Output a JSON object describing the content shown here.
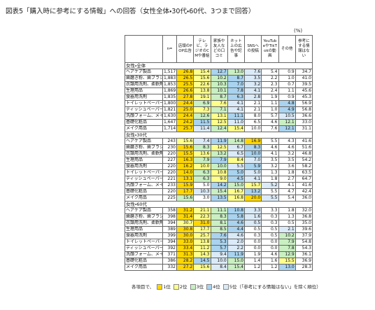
{
  "title": "図表5「購入時に参考にする情報」への回答（女性全体・30代・60代、3つまで回答）",
  "unit": "(%)",
  "header": {
    "n": "n=",
    "columns": [
      "店頭のPOP広告",
      "テレビ、ラジオのCMや番組",
      "家族や友人などの口コミ",
      "ネット上の広告や記事",
      "SNSへの投稿",
      "YouTubeやTikTokの動画",
      "その他",
      "参考にする情報はない"
    ]
  },
  "groups": [
    {
      "label": "女性・全体",
      "rows": [
        {
          "item": "ヘアケア製品",
          "n": "1,517",
          "values": [
            "26.8",
            "15.4",
            "12.7",
            "13.0",
            "7.6",
            "5.4",
            "0.9",
            "34.7"
          ]
        },
        {
          "item": "歯磨き粉、歯ブラシ",
          "n": "1,883",
          "values": [
            "26.5",
            "15.6",
            "10.2",
            "8.7",
            "3.5",
            "2.2",
            "1.0",
            "41.0"
          ]
        },
        {
          "item": "衣類用洗剤、柔軟剤",
          "n": "1,853",
          "values": [
            "25.5",
            "22.6",
            "10.3",
            "7.0",
            "3.2",
            "2.3",
            "0.7",
            "39.5"
          ]
        },
        {
          "item": "生理用品",
          "n": "1,869",
          "values": [
            "26.6",
            "13.8",
            "10.1",
            "7.8",
            "4.1",
            "2.4",
            "1.1",
            "45.6"
          ]
        },
        {
          "item": "食器用洗剤",
          "n": "1,835",
          "values": [
            "27.8",
            "19.1",
            "8.7",
            "6.3",
            "2.8",
            "1.9",
            "0.9",
            "45.3"
          ]
        },
        {
          "item": "トイレットペーパー",
          "n": "1,800",
          "values": [
            "24.4",
            "6.9",
            "7.6",
            "4.1",
            "2.1",
            "1.1",
            "4.8",
            "56.9"
          ]
        },
        {
          "item": "ティッシュペーパー",
          "n": "1,821",
          "values": [
            "25.0",
            "7.3",
            "7.1",
            "4.1",
            "2.1",
            "1.0",
            "4.9",
            "56.8"
          ]
        },
        {
          "item": "洗顔フォーム、メイク落とし",
          "n": "1,630",
          "values": [
            "24.4",
            "12.6",
            "13.1",
            "11.1",
            "8.0",
            "5.7",
            "10.5",
            "36.6"
          ]
        },
        {
          "item": "基礎化粧品",
          "n": "1,647",
          "values": [
            "24.2",
            "11.5",
            "12.5",
            "11.0",
            "6.5",
            "4.6",
            "12.1",
            "33.0"
          ]
        },
        {
          "item": "メイク用品",
          "n": "1,714",
          "values": [
            "25.7",
            "11.4",
            "12.4",
            "15.4",
            "10.0",
            "7.6",
            "12.1",
            "31.1"
          ]
        }
      ]
    },
    {
      "label": "女性・30代",
      "rows": [
        {
          "item": "ヘアケア製品",
          "n": "243",
          "values": [
            "15.6",
            "7.4",
            "11.9",
            "14.8",
            "16.9",
            "5.5",
            "4.3",
            "41.6"
          ]
        },
        {
          "item": "歯磨き粉、歯ブラシ",
          "n": "230",
          "values": [
            "15.6",
            "8.3",
            "12.5",
            "6.7",
            "8.3",
            "4.6",
            "4.6",
            "51.6"
          ]
        },
        {
          "item": "衣類用洗剤、柔軟剤",
          "n": "220",
          "values": [
            "15.5",
            "13.6",
            "13.2",
            "6.5",
            "10.0",
            "4.1",
            "3.2",
            "46.8"
          ]
        },
        {
          "item": "生理用品",
          "n": "227",
          "values": [
            "16.3",
            "7.9",
            "7.9",
            "8.4",
            "7.0",
            "3.5",
            "3.5",
            "54.2"
          ]
        },
        {
          "item": "食器用洗剤",
          "n": "220",
          "values": [
            "16.2",
            "10.0",
            "10.0",
            "5.5",
            "5.9",
            "3.2",
            "3.6",
            "58.2"
          ]
        },
        {
          "item": "トイレットペーパー",
          "n": "220",
          "values": [
            "14.0",
            "6.3",
            "10.8",
            "5.0",
            "5.0",
            "1.3",
            "1.8",
            "63.5"
          ]
        },
        {
          "item": "ティッシュペーパー",
          "n": "221",
          "values": [
            "13.1",
            "6.3",
            "9.0",
            "4.5",
            "4.1",
            "1.8",
            "2.7",
            "64.7"
          ]
        },
        {
          "item": "洗顔フォーム、メイク落とし",
          "n": "233",
          "values": [
            "15.9",
            "5.0",
            "14.2",
            "15.0",
            "15.7",
            "5.2",
            "4.1",
            "41.6"
          ]
        },
        {
          "item": "基礎化粧品",
          "n": "220",
          "values": [
            "17.7",
            "10.3",
            "15.4",
            "16.7",
            "13.2",
            "5.5",
            "4.7",
            "42.4"
          ]
        },
        {
          "item": "メイク用品",
          "n": "225",
          "values": [
            "15.6",
            "3.0",
            "13.5",
            "16.8",
            "20.0",
            "5.5",
            "5.4",
            "36.0"
          ]
        }
      ]
    },
    {
      "label": "女性・60代",
      "rows": [
        {
          "item": "ヘアケア製品",
          "n": "358",
          "values": [
            "31.2",
            "21.1",
            "11.1",
            "10.8",
            "3.3",
            "3.3",
            "1.8",
            "32.0"
          ]
        },
        {
          "item": "歯磨き粉、歯ブラシ",
          "n": "398",
          "values": [
            "31.4",
            "22.3",
            "8.3",
            "5.8",
            "1.6",
            "0.3",
            "1.3",
            "36.8"
          ]
        },
        {
          "item": "衣類用洗剤、柔軟剤",
          "n": "394",
          "values": [
            "30.7",
            "31.0",
            "8.1",
            "4.6",
            "0.5",
            "0.3",
            "0.5",
            "35.0"
          ]
        },
        {
          "item": "生理用品",
          "n": "389",
          "values": [
            "30.8",
            "17.7",
            "8.5",
            "4.4",
            "0.5",
            "0.5",
            "2.1",
            "39.6"
          ]
        },
        {
          "item": "食器用洗剤",
          "n": "399",
          "values": [
            "30.0",
            "25.7",
            "7.6",
            "4.6",
            "0.3",
            "0.5",
            "10.2",
            "37.9"
          ]
        },
        {
          "item": "トイレットペーパー",
          "n": "394",
          "values": [
            "33.0",
            "13.8",
            "5.3",
            "2.0",
            "0.0",
            "0.0",
            "7.9",
            "54.8"
          ]
        },
        {
          "item": "ティッシュペーパー",
          "n": "392",
          "values": [
            "33.4",
            "11.2",
            "5.7",
            "2.2",
            "0.0",
            "0.0",
            "7.8",
            "54.3"
          ]
        },
        {
          "item": "洗顔フォーム、メイク落とし",
          "n": "371",
          "values": [
            "31.3",
            "14.3",
            "9.4",
            "11.9",
            "1.9",
            "4.6",
            "12.9",
            "36.1"
          ]
        },
        {
          "item": "基礎化粧品",
          "n": "386",
          "values": [
            "28.2",
            "14.5",
            "10.0",
            "15.0",
            "1.4",
            "1.6",
            "15.5",
            "36.9"
          ]
        },
        {
          "item": "メイク用品",
          "n": "332",
          "values": [
            "27.2",
            "15.6",
            "8.4",
            "15.4",
            "1.2",
            "1.2",
            "13.0",
            "28.3"
          ]
        }
      ]
    }
  ],
  "legend": {
    "prefix": "各項目で、",
    "items": [
      "1位",
      "2位",
      "3位",
      "4位",
      "5位"
    ],
    "suffix": "（「参考にする情報はない」を除く順位）"
  }
}
